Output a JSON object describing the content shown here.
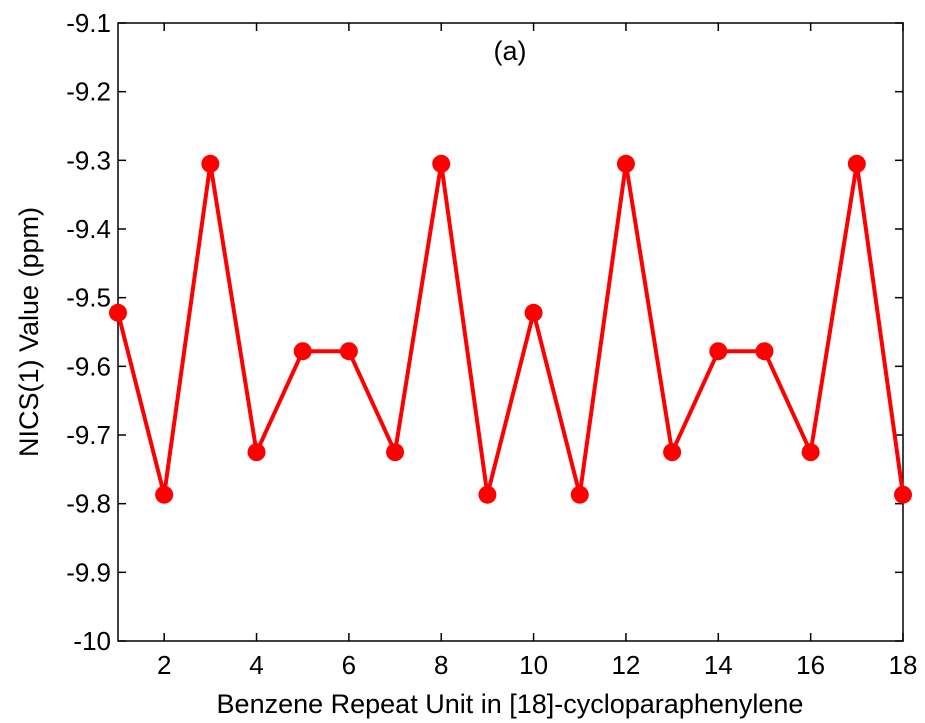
{
  "chart_data": {
    "type": "line",
    "annotation": "(a)",
    "xlabel": "Benzene Repeat Unit in [18]-cycloparaphenylene",
    "ylabel": "NICS(1) Value (ppm)",
    "xlim": [
      1,
      18
    ],
    "ylim": [
      -10,
      -9.1
    ],
    "xticks": [
      2,
      4,
      6,
      8,
      10,
      12,
      14,
      16,
      18
    ],
    "yticks": [
      -9.1,
      -9.2,
      -9.3,
      -9.4,
      -9.5,
      -9.6,
      -9.7,
      -9.8,
      -9.9,
      -10
    ],
    "ytick_labels": [
      "-9.1",
      "-9.2",
      "-9.3",
      "-9.4",
      "-9.5",
      "-9.6",
      "-9.7",
      "-9.8",
      "-9.9",
      "-10"
    ],
    "grid": false,
    "series": [
      {
        "color": "#ff0000",
        "marker": "circle",
        "x": [
          1,
          2,
          3,
          4,
          5,
          6,
          7,
          8,
          9,
          10,
          11,
          12,
          13,
          14,
          15,
          16,
          17,
          18
        ],
        "y": [
          -9.522,
          -9.787,
          -9.305,
          -9.725,
          -9.578,
          -9.578,
          -9.725,
          -9.305,
          -9.787,
          -9.522,
          -9.787,
          -9.305,
          -9.725,
          -9.578,
          -9.578,
          -9.725,
          -9.305,
          -9.787
        ]
      }
    ]
  }
}
